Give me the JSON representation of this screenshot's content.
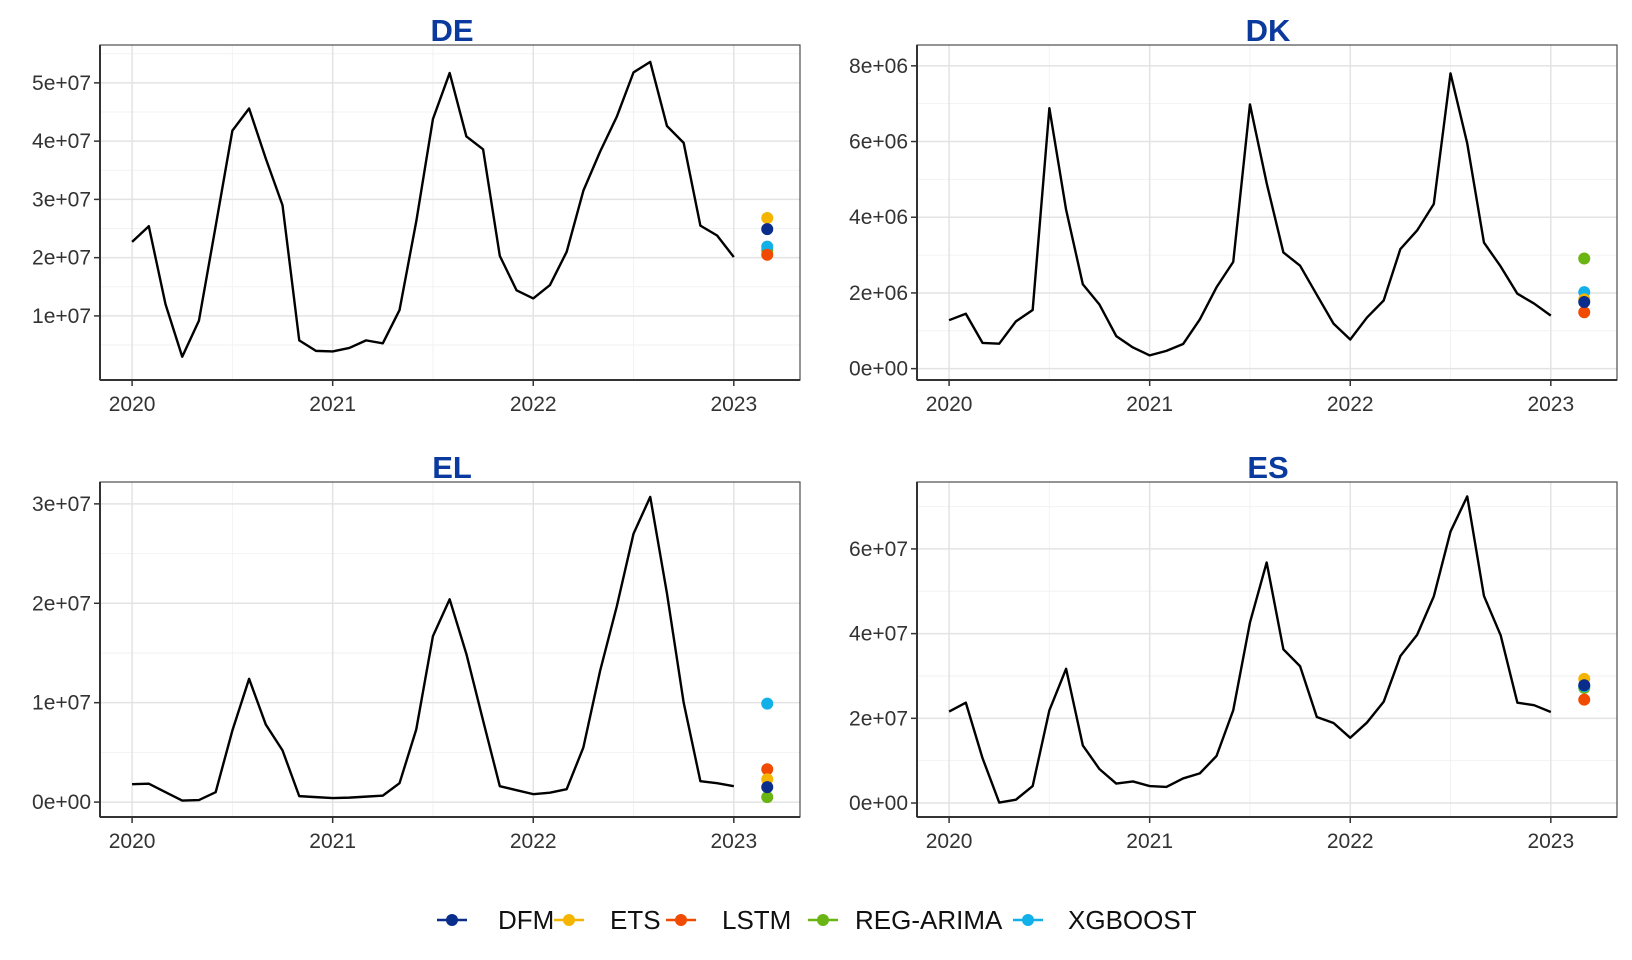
{
  "legend": {
    "items": [
      {
        "name": "DFM",
        "color": "#0a2d8c"
      },
      {
        "name": "ETS",
        "color": "#f5b400"
      },
      {
        "name": "LSTM",
        "color": "#f04b00"
      },
      {
        "name": "REG-ARIMA",
        "color": "#6ab414"
      },
      {
        "name": "XGBOOST",
        "color": "#12b0e8"
      }
    ]
  },
  "chart_data": [
    {
      "type": "line",
      "title": "DE",
      "xlabel": "",
      "ylabel": "",
      "xlim": [
        2019.84,
        2023.33
      ],
      "ylim": [
        -1000000,
        56500000
      ],
      "xticks": [
        2020,
        2021,
        2022,
        2023
      ],
      "xtick_labels": [
        "2020",
        "2021",
        "2022",
        "2023"
      ],
      "yticks": [
        10000000,
        20000000,
        30000000,
        40000000,
        50000000
      ],
      "ytick_labels": [
        "1e+07",
        "2e+07",
        "3e+07",
        "4e+07",
        "5e+07"
      ],
      "grid": true,
      "series": [
        {
          "values": [
            22700000,
            25400000,
            12000000,
            3000000,
            9200000,
            25400000,
            41800000,
            45600000,
            37000000,
            29000000,
            5800000,
            4000000,
            3900000,
            4500000,
            5800000,
            5300000,
            11000000,
            26200000,
            43800000,
            51700000,
            40800000,
            38600000,
            20300000,
            14400000,
            13000000,
            15300000,
            21000000,
            31500000,
            38200000,
            44200000,
            51800000,
            53600000,
            42600000,
            39700000,
            25500000,
            23800000,
            20100000
          ]
        }
      ],
      "forecasts": [
        {
          "model": "DFM",
          "value": 24900000
        },
        {
          "model": "ETS",
          "value": 26800000
        },
        {
          "model": "LSTM",
          "value": 20500000
        },
        {
          "model": "REG-ARIMA",
          "value": 21300000
        },
        {
          "model": "XGBOOST",
          "value": 21900000
        }
      ]
    },
    {
      "type": "line",
      "title": "DK",
      "xlabel": "",
      "ylabel": "",
      "xlim": [
        2019.84,
        2023.33
      ],
      "ylim": [
        -300000,
        8550000
      ],
      "xticks": [
        2020,
        2021,
        2022,
        2023
      ],
      "xtick_labels": [
        "2020",
        "2021",
        "2022",
        "2023"
      ],
      "yticks": [
        0,
        2000000,
        4000000,
        6000000,
        8000000
      ],
      "ytick_labels": [
        "0e+00",
        "2e+06",
        "4e+06",
        "6e+06",
        "8e+06"
      ],
      "grid": true,
      "series": [
        {
          "values": [
            1280000,
            1450000,
            680000,
            660000,
            1250000,
            1550000,
            6880000,
            4200000,
            2230000,
            1690000,
            860000,
            560000,
            350000,
            470000,
            650000,
            1300000,
            2150000,
            2820000,
            6980000,
            4900000,
            3070000,
            2720000,
            1950000,
            1190000,
            770000,
            1350000,
            1800000,
            3160000,
            3650000,
            4350000,
            7800000,
            5950000,
            3330000,
            2700000,
            1980000,
            1720000,
            1400000
          ]
        }
      ],
      "forecasts": [
        {
          "model": "DFM",
          "value": 1760000
        },
        {
          "model": "ETS",
          "value": 1830000
        },
        {
          "model": "LSTM",
          "value": 1490000
        },
        {
          "model": "REG-ARIMA",
          "value": 2910000
        },
        {
          "model": "XGBOOST",
          "value": 2020000
        }
      ]
    },
    {
      "type": "line",
      "title": "EL",
      "xlabel": "",
      "ylabel": "",
      "xlim": [
        2019.84,
        2023.33
      ],
      "ylim": [
        -1500000,
        32200000
      ],
      "xticks": [
        2020,
        2021,
        2022,
        2023
      ],
      "xtick_labels": [
        "2020",
        "2021",
        "2022",
        "2023"
      ],
      "yticks": [
        0,
        10000000,
        20000000,
        30000000
      ],
      "ytick_labels": [
        "0e+00",
        "1e+07",
        "2e+07",
        "3e+07"
      ],
      "grid": true,
      "series": [
        {
          "values": [
            1800000,
            1850000,
            1000000,
            150000,
            200000,
            1000000,
            7200000,
            12400000,
            7800000,
            5200000,
            600000,
            500000,
            400000,
            450000,
            550000,
            650000,
            1900000,
            7300000,
            16700000,
            20400000,
            14900000,
            8200000,
            1600000,
            1200000,
            800000,
            950000,
            1300000,
            5500000,
            13200000,
            19700000,
            27000000,
            30700000,
            21000000,
            10000000,
            2100000,
            1900000,
            1600000
          ]
        }
      ],
      "forecasts": [
        {
          "model": "DFM",
          "value": 1500000
        },
        {
          "model": "ETS",
          "value": 2300000
        },
        {
          "model": "LSTM",
          "value": 3300000
        },
        {
          "model": "REG-ARIMA",
          "value": 500000
        },
        {
          "model": "XGBOOST",
          "value": 9900000
        }
      ]
    },
    {
      "type": "line",
      "title": "ES",
      "xlabel": "",
      "ylabel": "",
      "xlim": [
        2019.84,
        2023.33
      ],
      "ylim": [
        -3300000,
        75800000
      ],
      "xticks": [
        2020,
        2021,
        2022,
        2023
      ],
      "xtick_labels": [
        "2020",
        "2021",
        "2022",
        "2023"
      ],
      "yticks": [
        0,
        20000000,
        40000000,
        60000000
      ],
      "ytick_labels": [
        "0e+00",
        "2e+07",
        "4e+07",
        "6e+07"
      ],
      "grid": true,
      "series": [
        {
          "values": [
            21600000,
            23700000,
            10600000,
            100000,
            800000,
            4000000,
            21900000,
            31700000,
            13600000,
            8000000,
            4600000,
            5100000,
            4000000,
            3800000,
            5800000,
            7000000,
            11100000,
            21900000,
            42600000,
            56800000,
            36300000,
            32300000,
            20300000,
            18900000,
            15400000,
            19000000,
            23900000,
            34700000,
            39700000,
            48800000,
            64100000,
            72400000,
            48900000,
            39600000,
            23700000,
            23100000,
            21500000
          ]
        }
      ],
      "forecasts": [
        {
          "model": "DFM",
          "value": 27800000
        },
        {
          "model": "ETS",
          "value": 29300000
        },
        {
          "model": "LSTM",
          "value": 24400000
        },
        {
          "model": "REG-ARIMA",
          "value": 27200000
        },
        {
          "model": "XGBOOST",
          "value": 27600000
        }
      ]
    }
  ]
}
